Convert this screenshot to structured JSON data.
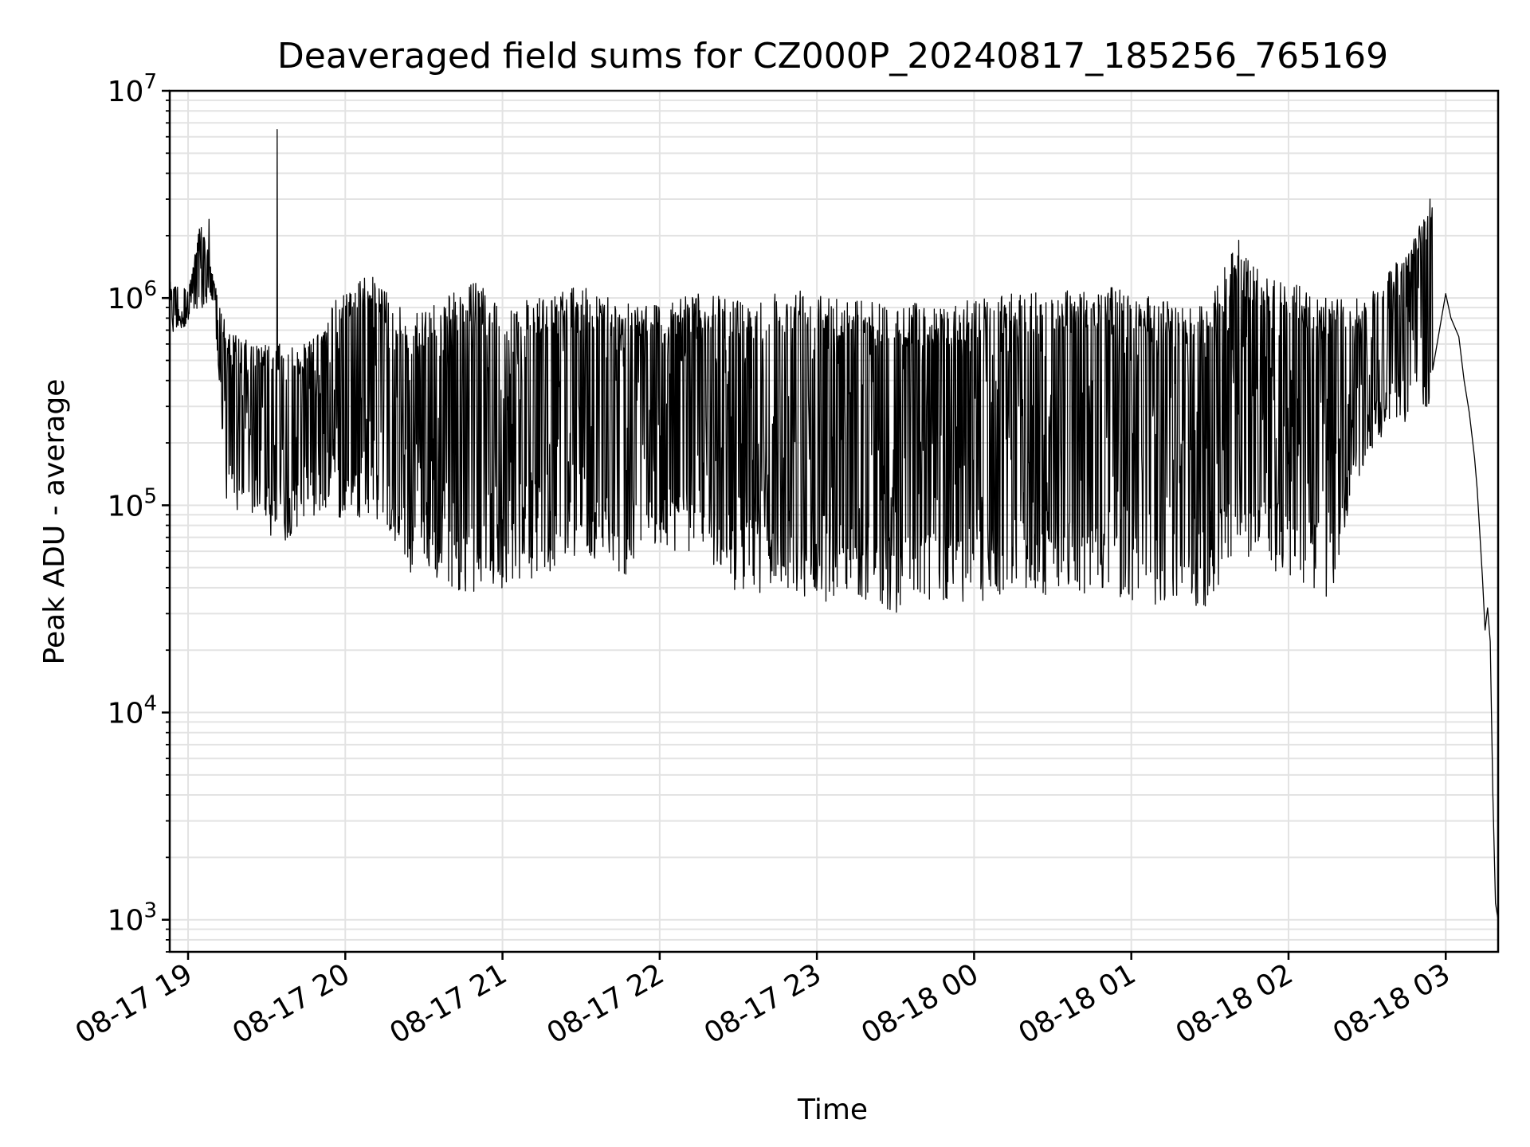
{
  "chart_data": {
    "type": "line",
    "title": "Deaveraged field sums for CZ000P_20240817_185256_765169",
    "xlabel": "Time",
    "ylabel": "Peak ADU - average",
    "x_tick_labels": [
      "08-17 19",
      "08-17 20",
      "08-17 21",
      "08-17 22",
      "08-17 23",
      "08-18 00",
      "08-18 01",
      "08-18 02",
      "08-18 03"
    ],
    "x_tick_hours": [
      0,
      1,
      2,
      3,
      4,
      5,
      6,
      7,
      8
    ],
    "x_tick_datetimes": [
      "2024-08-17 19:00",
      "2024-08-17 20:00",
      "2024-08-17 21:00",
      "2024-08-17 22:00",
      "2024-08-17 23:00",
      "2024-08-18 00:00",
      "2024-08-18 01:00",
      "2024-08-18 02:00",
      "2024-08-18 03:00"
    ],
    "xlim": [
      "2024-08-17 18:53",
      "2024-08-18 03:20"
    ],
    "y_scale": "log",
    "ylim": [
      700,
      10000000
    ],
    "y_ticks": [
      1000,
      10000,
      100000,
      1000000,
      10000000
    ],
    "y_tick_labels": [
      {
        "base": "10",
        "exp": "3"
      },
      {
        "base": "10",
        "exp": "4"
      },
      {
        "base": "10",
        "exp": "5"
      },
      {
        "base": "10",
        "exp": "6"
      },
      {
        "base": "10",
        "exp": "7"
      }
    ],
    "grid": true,
    "line_color": "#000000",
    "grid_color": "#e3e3e3",
    "series": [
      {
        "envelope": [
          {
            "t": "18:53",
            "hi": 1200000,
            "lo": 650000
          },
          {
            "t": "19:00",
            "hi": 1100000,
            "lo": 750000
          },
          {
            "t": "19:05",
            "hi": 2400000,
            "lo": 850000
          },
          {
            "t": "19:10",
            "hi": 1200000,
            "lo": 900000
          },
          {
            "t": "19:15",
            "hi": 700000,
            "lo": 90000
          },
          {
            "t": "19:25",
            "hi": 600000,
            "lo": 90000
          },
          {
            "t": "19:35",
            "hi": 600000,
            "lo": 62000
          },
          {
            "t": "19:45",
            "hi": 600000,
            "lo": 88000
          },
          {
            "t": "20:00",
            "hi": 1150000,
            "lo": 85000
          },
          {
            "t": "20:10",
            "hi": 1300000,
            "lo": 90000
          },
          {
            "t": "20:25",
            "hi": 800000,
            "lo": 45000
          },
          {
            "t": "20:35",
            "hi": 1000000,
            "lo": 42000
          },
          {
            "t": "20:50",
            "hi": 1200000,
            "lo": 36000
          },
          {
            "t": "21:00",
            "hi": 950000,
            "lo": 40000
          },
          {
            "t": "21:15",
            "hi": 1000000,
            "lo": 45000
          },
          {
            "t": "21:30",
            "hi": 1150000,
            "lo": 60000
          },
          {
            "t": "21:45",
            "hi": 1000000,
            "lo": 44000
          },
          {
            "t": "22:00",
            "hi": 950000,
            "lo": 60000
          },
          {
            "t": "22:15",
            "hi": 1050000,
            "lo": 60000
          },
          {
            "t": "22:30",
            "hi": 1000000,
            "lo": 37000
          },
          {
            "t": "22:45",
            "hi": 1100000,
            "lo": 38000
          },
          {
            "t": "23:00",
            "hi": 1200000,
            "lo": 33000
          },
          {
            "t": "23:15",
            "hi": 1000000,
            "lo": 37000
          },
          {
            "t": "23:30",
            "hi": 950000,
            "lo": 30000
          },
          {
            "t": "23:45",
            "hi": 950000,
            "lo": 35000
          },
          {
            "t": "00:00",
            "hi": 1000000,
            "lo": 33000
          },
          {
            "t": "00:15",
            "hi": 1050000,
            "lo": 37000
          },
          {
            "t": "00:30",
            "hi": 1100000,
            "lo": 36000
          },
          {
            "t": "00:45",
            "hi": 1150000,
            "lo": 38000
          },
          {
            "t": "01:00",
            "hi": 1100000,
            "lo": 33000
          },
          {
            "t": "01:15",
            "hi": 950000,
            "lo": 31000
          },
          {
            "t": "01:30",
            "hi": 950000,
            "lo": 32000
          },
          {
            "t": "01:40",
            "hi": 1900000,
            "lo": 60000
          },
          {
            "t": "01:50",
            "hi": 1300000,
            "lo": 50000
          },
          {
            "t": "02:00",
            "hi": 1200000,
            "lo": 45000
          },
          {
            "t": "02:15",
            "hi": 1000000,
            "lo": 33000
          },
          {
            "t": "02:30",
            "hi": 1000000,
            "lo": 180000
          },
          {
            "t": "02:45",
            "hi": 1700000,
            "lo": 250000
          },
          {
            "t": "02:55",
            "hi": 3000000,
            "lo": 300000
          }
        ],
        "tail": [
          {
            "t": "03:00",
            "y": 1050000
          },
          {
            "t": "03:02",
            "y": 800000
          },
          {
            "t": "03:05",
            "y": 650000
          },
          {
            "t": "03:07",
            "y": 400000
          },
          {
            "t": "03:09",
            "y": 280000
          },
          {
            "t": "03:11",
            "y": 170000
          },
          {
            "t": "03:12",
            "y": 120000
          },
          {
            "t": "03:14",
            "y": 45000
          },
          {
            "t": "03:15",
            "y": 25000
          },
          {
            "t": "03:16",
            "y": 32000
          },
          {
            "t": "03:17",
            "y": 22000
          },
          {
            "t": "03:18",
            "y": 4000
          },
          {
            "t": "03:19",
            "y": 1200
          },
          {
            "t": "03:20",
            "y": 1000
          }
        ],
        "spikes": [
          {
            "t": "19:34",
            "y": 6500000
          },
          {
            "t": "19:08",
            "y": 2400000
          },
          {
            "t": "01:41",
            "y": 1900000
          },
          {
            "t": "02:54",
            "y": 3000000
          },
          {
            "t": "02:47",
            "y": 1700000
          }
        ]
      }
    ]
  }
}
